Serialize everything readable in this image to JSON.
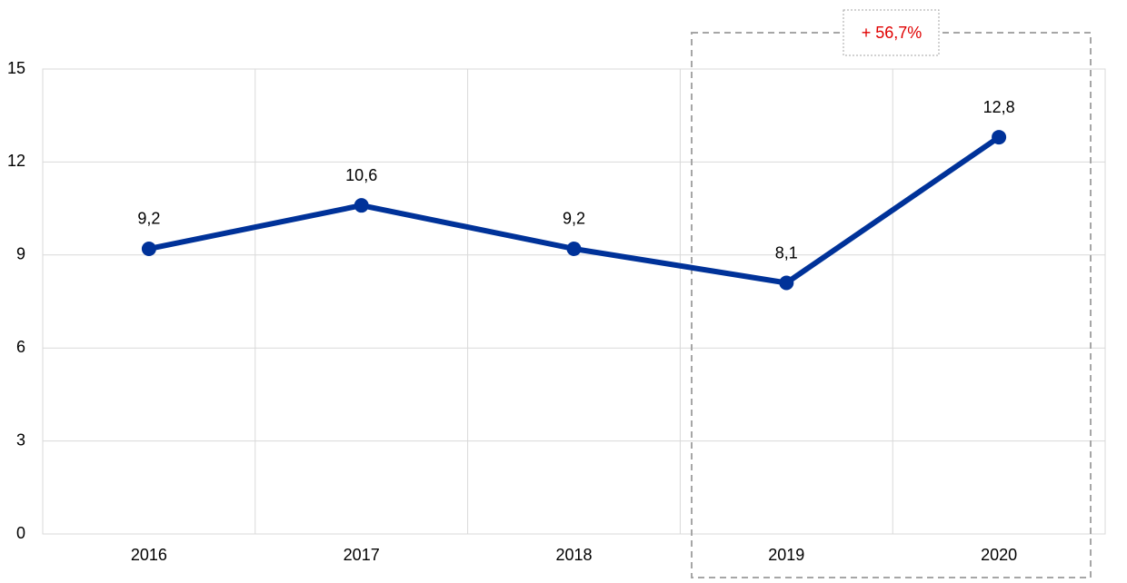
{
  "chart_data": {
    "type": "line",
    "categories": [
      "2016",
      "2017",
      "2018",
      "2019",
      "2020"
    ],
    "values": [
      9.2,
      10.6,
      9.2,
      8.1,
      12.8
    ],
    "value_labels": [
      "9,2",
      "10,6",
      "9,2",
      "8,1",
      "12,8"
    ],
    "color": "#003299",
    "ylim": [
      0,
      15
    ],
    "yticks": [
      0,
      3,
      6,
      9,
      12,
      15
    ],
    "grid": true,
    "annotation": "+ 56,7%"
  }
}
